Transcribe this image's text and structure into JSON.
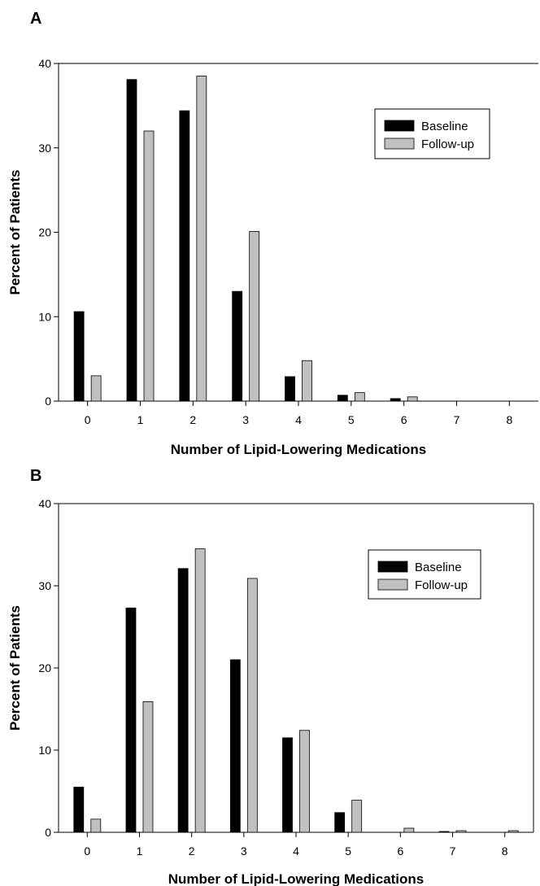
{
  "chart_data": [
    {
      "panel": "A",
      "type": "bar",
      "categories": [
        "0",
        "1",
        "2",
        "3",
        "4",
        "5",
        "6",
        "7",
        "8"
      ],
      "series": [
        {
          "name": "Baseline",
          "color": "#000000",
          "values": [
            10.6,
            38.1,
            34.4,
            13.0,
            2.9,
            0.7,
            0.3,
            0,
            0
          ]
        },
        {
          "name": "Follow-up",
          "color": "#c0c0c0",
          "values": [
            3.0,
            32.0,
            38.5,
            20.1,
            4.8,
            1.0,
            0.5,
            0,
            0
          ]
        }
      ],
      "xlabel": "Number of Lipid-Lowering Medications",
      "ylabel": "Percent of Patients",
      "ylim": [
        0,
        40
      ],
      "yticks": [
        "0",
        "10",
        "20",
        "30",
        "40"
      ],
      "grid": false,
      "legend_position": "top-right"
    },
    {
      "panel": "B",
      "type": "bar",
      "categories": [
        "0",
        "1",
        "2",
        "3",
        "4",
        "5",
        "6",
        "7",
        "8"
      ],
      "series": [
        {
          "name": "Baseline",
          "color": "#000000",
          "values": [
            5.5,
            27.3,
            32.1,
            21.0,
            11.5,
            2.4,
            0,
            0.1,
            0
          ]
        },
        {
          "name": "Follow-up",
          "color": "#c0c0c0",
          "values": [
            1.6,
            15.9,
            34.5,
            30.9,
            12.4,
            3.9,
            0.5,
            0.2,
            0.2
          ]
        }
      ],
      "xlabel": "Number of Lipid-Lowering Medications",
      "ylabel": "Percent of Patients",
      "ylim": [
        0,
        40
      ],
      "yticks": [
        "0",
        "10",
        "20",
        "30",
        "40"
      ],
      "grid": false,
      "legend_position": "top-right"
    }
  ]
}
